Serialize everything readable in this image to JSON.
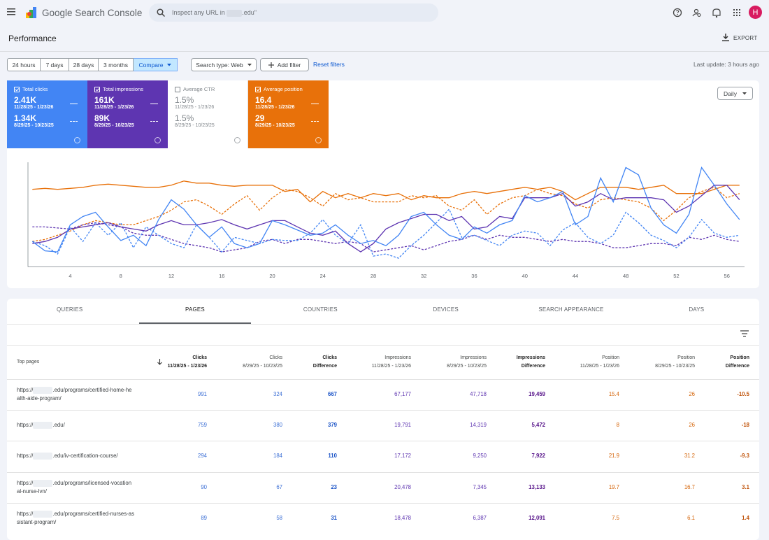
{
  "header": {
    "app_name": "Google Search Console",
    "search_placeholder": [
      "Inspect any URL in",
      ".edu\""
    ],
    "avatar": "H"
  },
  "toolbar": {
    "title": "Performance",
    "export": "EXPORT"
  },
  "filters": {
    "ranges": [
      "24 hours",
      "7 days",
      "28 days",
      "3 months"
    ],
    "compare": "Compare",
    "search_type": "Search type: Web",
    "add_filter": "Add filter",
    "reset": "Reset filters",
    "last_update": "Last update: 3 hours ago"
  },
  "metrics": [
    {
      "label": "Total clicks",
      "current": "2.41K",
      "current_range": "11/28/25 - 1/23/26",
      "previous": "1.34K",
      "previous_range": "8/29/25 - 10/23/25",
      "selected": true,
      "color": "#4285f4"
    },
    {
      "label": "Total impressions",
      "current": "161K",
      "current_range": "11/28/25 - 1/23/26",
      "previous": "89K",
      "previous_range": "8/29/25 - 10/23/25",
      "selected": true,
      "color": "#5e35b1"
    },
    {
      "label": "Average CTR",
      "current": "1.5%",
      "current_range": "11/28/25 - 1/23/26",
      "previous": "1.5%",
      "previous_range": "8/29/25 - 10/23/25",
      "selected": false,
      "color": "#ffffff"
    },
    {
      "label": "Average position",
      "current": "16.4",
      "current_range": "11/28/25 - 1/23/26",
      "previous": "29",
      "previous_range": "8/29/25 - 10/23/25",
      "selected": true,
      "color": "#e8710a"
    }
  ],
  "granularity": "Daily",
  "chart_data": {
    "type": "line",
    "x": [
      1,
      2,
      3,
      4,
      5,
      6,
      7,
      8,
      9,
      10,
      11,
      12,
      13,
      14,
      15,
      16,
      17,
      18,
      19,
      20,
      21,
      22,
      23,
      24,
      25,
      26,
      27,
      28,
      29,
      30,
      31,
      32,
      33,
      34,
      35,
      36,
      37,
      38,
      39,
      40,
      41,
      42,
      43,
      44,
      45,
      46,
      47,
      48,
      49,
      50,
      51,
      52,
      53,
      54,
      55,
      56,
      57
    ],
    "xlim": [
      0.65,
      57.4
    ],
    "xticks": [
      4,
      8,
      12,
      16,
      20,
      24,
      28,
      32,
      36,
      40,
      44,
      48,
      52,
      56
    ],
    "ylim": [
      0,
      100
    ],
    "series": [
      {
        "color": "#e8710a",
        "dashed": true,
        "values": [
          24,
          26,
          30,
          34,
          40,
          44,
          42,
          40,
          40,
          44,
          48,
          54,
          62,
          64,
          58,
          50,
          60,
          68,
          54,
          66,
          74,
          72,
          66,
          58,
          70,
          64,
          66,
          62,
          62,
          62,
          68,
          66,
          68,
          58,
          54,
          64,
          50,
          60,
          66,
          68,
          74,
          70,
          68,
          60,
          56,
          64,
          66,
          64,
          62,
          56,
          44,
          54,
          66,
          72,
          76,
          66,
          70
        ]
      },
      {
        "color": "#5e35b1",
        "dashed": true,
        "values": [
          38,
          38,
          37,
          36,
          40,
          42,
          40,
          38,
          32,
          30,
          30,
          26,
          22,
          20,
          18,
          14,
          16,
          18,
          24,
          26,
          22,
          26,
          26,
          24,
          22,
          24,
          22,
          14,
          16,
          18,
          20,
          16,
          20,
          24,
          26,
          30,
          26,
          30,
          28,
          28,
          26,
          24,
          26,
          24,
          24,
          22,
          18,
          18,
          20,
          22,
          22,
          20,
          28,
          26,
          30,
          26,
          24
        ]
      },
      {
        "color": "#4285f4",
        "dashed": true,
        "values": [
          24,
          20,
          12,
          38,
          24,
          42,
          30,
          42,
          18,
          38,
          30,
          22,
          18,
          40,
          28,
          14,
          28,
          25,
          22,
          26,
          25,
          25,
          32,
          45,
          30,
          22,
          40,
          10,
          12,
          8,
          20,
          30,
          42,
          55,
          28,
          30,
          25,
          20,
          30,
          34,
          32,
          20,
          35,
          42,
          28,
          22,
          30,
          52,
          42,
          30,
          25,
          18,
          28,
          45,
          32,
          28,
          30
        ]
      },
      {
        "color": "#e8710a",
        "dashed": false,
        "values": [
          74,
          75,
          74,
          75,
          76,
          78,
          79,
          78,
          77,
          76,
          76,
          78,
          82,
          80,
          80,
          78,
          77,
          78,
          78,
          78,
          72,
          74,
          62,
          72,
          66,
          70,
          66,
          70,
          68,
          70,
          64,
          68,
          66,
          66,
          70,
          72,
          70,
          72,
          74,
          76,
          74,
          76,
          72,
          64,
          70,
          76,
          76,
          76,
          74,
          76,
          78,
          70,
          70,
          70,
          74,
          78,
          78
        ]
      },
      {
        "color": "#5e35b1",
        "dashed": false,
        "values": [
          22,
          24,
          28,
          36,
          38,
          40,
          42,
          38,
          36,
          34,
          40,
          44,
          40,
          40,
          42,
          45,
          40,
          36,
          40,
          44,
          44,
          38,
          32,
          30,
          34,
          22,
          14,
          22,
          36,
          42,
          46,
          50,
          50,
          44,
          48,
          36,
          38,
          48,
          46,
          66,
          66,
          66,
          70,
          58,
          62,
          70,
          64,
          66,
          66,
          66,
          64,
          52,
          58,
          68,
          78,
          78,
          64
        ]
      },
      {
        "color": "#4285f4",
        "dashed": false,
        "values": [
          24,
          15,
          14,
          40,
          48,
          52,
          38,
          25,
          30,
          20,
          45,
          64,
          55,
          40,
          28,
          38,
          22,
          18,
          22,
          44,
          40,
          35,
          30,
          32,
          40,
          30,
          22,
          25,
          20,
          30,
          48,
          52,
          40,
          30,
          26,
          38,
          32,
          40,
          44,
          68,
          62,
          66,
          72,
          40,
          48,
          85,
          62,
          95,
          88,
          56,
          40,
          32,
          50,
          95,
          78,
          60,
          45
        ]
      }
    ]
  },
  "tabs": {
    "items": [
      "QUERIES",
      "PAGES",
      "COUNTRIES",
      "DEVICES",
      "SEARCH APPEARANCE",
      "DAYS"
    ],
    "active": 1
  },
  "table": {
    "first_column": "Top pages",
    "columns": [
      {
        "name": "Clicks",
        "sub": "11/28/25 - 1/23/26"
      },
      {
        "name": "Clicks",
        "sub": "8/29/25 - 10/23/25"
      },
      {
        "name": "Clicks",
        "sub": "Difference"
      },
      {
        "name": "Impressions",
        "sub": "11/28/25 - 1/23/26"
      },
      {
        "name": "Impressions",
        "sub": "8/29/25 - 10/23/25"
      },
      {
        "name": "Impressions",
        "sub": "Difference"
      },
      {
        "name": "Position",
        "sub": "11/28/25 - 1/23/26"
      },
      {
        "name": "Position",
        "sub": "8/29/25 - 10/23/25"
      },
      {
        "name": "Position",
        "sub": "Difference"
      }
    ],
    "rows": [
      {
        "url": [
          "https://",
          ".edu/programs/certified-home-health-aide-program/"
        ],
        "cells": [
          "991",
          "324",
          "667",
          "67,177",
          "47,718",
          "19,459",
          "15.4",
          "26",
          "-10.5"
        ]
      },
      {
        "url": [
          "https://",
          ".edu/"
        ],
        "cells": [
          "759",
          "380",
          "379",
          "19,791",
          "14,319",
          "5,472",
          "8",
          "26",
          "-18"
        ]
      },
      {
        "url": [
          "https://",
          ".edu/iv-certification-course/"
        ],
        "cells": [
          "294",
          "184",
          "110",
          "17,172",
          "9,250",
          "7,922",
          "21.9",
          "31.2",
          "-9.3"
        ]
      },
      {
        "url": [
          "https://",
          ".edu/programs/licensed-vocational-nurse-lvn/"
        ],
        "cells": [
          "90",
          "67",
          "23",
          "20,478",
          "7,345",
          "13,133",
          "19.7",
          "16.7",
          "3.1"
        ]
      },
      {
        "url": [
          "https://",
          ".edu/programs/certified-nurses-assistant-program/"
        ],
        "cells": [
          "89",
          "58",
          "31",
          "18,478",
          "6,387",
          "12,091",
          "7.5",
          "6.1",
          "1.4"
        ]
      }
    ]
  }
}
